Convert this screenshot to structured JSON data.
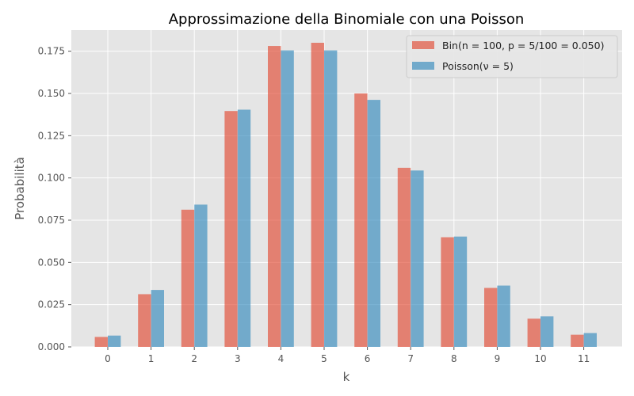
{
  "chart_data": {
    "type": "bar",
    "title": "Approssimazione della Binomiale con una Poisson",
    "xlabel": "k",
    "ylabel": "Probabilità",
    "categories": [
      "0",
      "1",
      "2",
      "3",
      "4",
      "5",
      "6",
      "7",
      "8",
      "9",
      "10",
      "11"
    ],
    "ylim": [
      0,
      0.1875
    ],
    "yticks": [
      "0.000",
      "0.025",
      "0.050",
      "0.075",
      "0.100",
      "0.125",
      "0.150",
      "0.175"
    ],
    "grid": true,
    "legend_position": "top-right",
    "series": [
      {
        "name": "Bin(n = 100, p = 5/100 = 0.050)",
        "color": "#E24A33",
        "values": [
          0.0059,
          0.0312,
          0.0812,
          0.1396,
          0.1781,
          0.18,
          0.15,
          0.106,
          0.0649,
          0.0349,
          0.0167,
          0.0072
        ]
      },
      {
        "name": "Poisson(ν = 5)",
        "color": "#348ABD",
        "values": [
          0.0067,
          0.0337,
          0.0842,
          0.1404,
          0.1755,
          0.1755,
          0.1462,
          0.1044,
          0.0653,
          0.0363,
          0.0181,
          0.0082
        ]
      }
    ]
  }
}
